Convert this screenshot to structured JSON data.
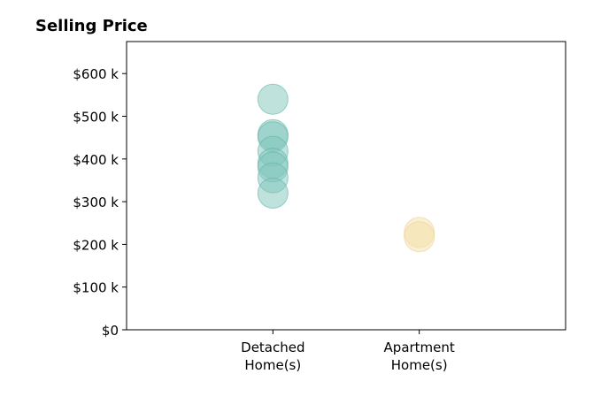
{
  "chart_data": {
    "type": "scatter",
    "title": "Selling Price",
    "xlabel": "",
    "ylabel": "",
    "categories": [
      [
        "Detached",
        "Home(s)"
      ],
      [
        "Apartment",
        "Home(s)"
      ]
    ],
    "xlim": [
      -1,
      2
    ],
    "ylim": [
      0,
      675000
    ],
    "y_ticks": [
      0,
      100000,
      200000,
      300000,
      400000,
      500000,
      600000
    ],
    "y_tick_labels": [
      "$0",
      "$100 k",
      "$200 k",
      "$300 k",
      "$400 k",
      "$500 k",
      "$600 k"
    ],
    "grid": false,
    "legend": "none",
    "series": [
      {
        "color": "#7fc5bb",
        "edge_color": "#5fb3a7",
        "category_index": 0,
        "values": [
          540000,
          457000,
          452000,
          418000,
          390000,
          381000,
          356000,
          320000
        ]
      },
      {
        "color": "#f3dfa8",
        "edge_color": "#ead19a",
        "category_index": 1,
        "values": [
          228000,
          218000
        ]
      }
    ]
  }
}
